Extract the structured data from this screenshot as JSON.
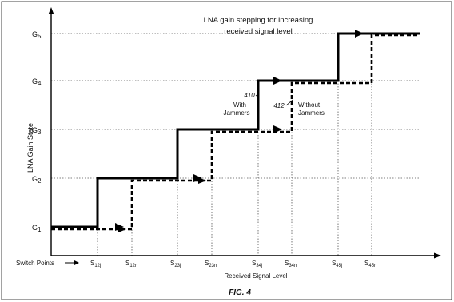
{
  "title_line1": "LNA gain stepping for increasing",
  "title_line2": "received signal level",
  "y_axis_label": "LNA Gain State",
  "x_axis_label": "Received Signal Level",
  "switch_points_label": "Switch Points",
  "gain_levels": [
    {
      "id": "G1",
      "base": "G",
      "sub": "1"
    },
    {
      "id": "G2",
      "base": "G",
      "sub": "2"
    },
    {
      "id": "G3",
      "base": "G",
      "sub": "3"
    },
    {
      "id": "G4",
      "base": "G",
      "sub": "4"
    },
    {
      "id": "G5",
      "base": "G",
      "sub": "5"
    }
  ],
  "switch_points": [
    {
      "base": "S",
      "sub": "12j"
    },
    {
      "base": "S",
      "sub": "12n"
    },
    {
      "base": "S",
      "sub": "23j"
    },
    {
      "base": "S",
      "sub": "23n"
    },
    {
      "base": "S",
      "sub": "34j"
    },
    {
      "base": "S",
      "sub": "34n"
    },
    {
      "base": "S",
      "sub": "45j"
    },
    {
      "base": "S",
      "sub": "45n"
    }
  ],
  "curves": {
    "with_jammers": {
      "label_line1": "With",
      "label_line2": "Jammers",
      "ref": "410",
      "style": "solid"
    },
    "without_jammers": {
      "label_line1": "Without",
      "label_line2": "Jammers",
      "ref": "412",
      "style": "dashed"
    }
  },
  "figure_caption": "FIG. 4"
}
